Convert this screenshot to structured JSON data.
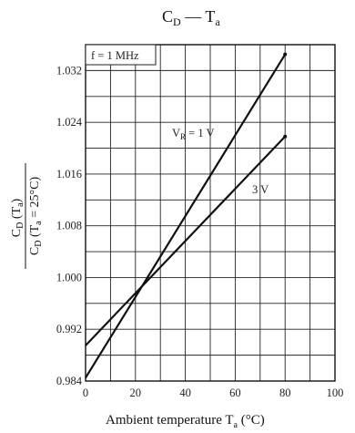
{
  "chart_data": {
    "type": "line",
    "title": "C_D — T_a",
    "xlabel": "Ambient temperature  T_a  (°C)",
    "ylabel": "C_D (T_a) / C_D (T_a = 25°C)",
    "annotation": "f = 1 MHz",
    "xlim": [
      0,
      100
    ],
    "ylim": [
      0.984,
      1.036
    ],
    "x_ticks": [
      "0",
      "20",
      "40",
      "60",
      "80",
      "100"
    ],
    "y_ticks": [
      "0.984",
      "0.992",
      "1.000",
      "1.008",
      "1.016",
      "1.024",
      "1.032"
    ],
    "grid": true,
    "series": [
      {
        "name": "V_R = 1 V",
        "x": [
          0,
          80
        ],
        "y": [
          0.9845,
          1.0345
        ]
      },
      {
        "name": "3 V",
        "x": [
          0,
          80
        ],
        "y": [
          0.9895,
          1.0218
        ]
      }
    ]
  }
}
